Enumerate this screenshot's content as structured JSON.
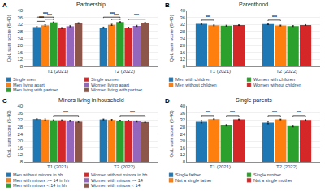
{
  "chart_data": [
    {
      "type": "bar",
      "panel_label": "A",
      "title": "Partnership",
      "ylabel": "QoL sum score (8-40)",
      "categories": [
        "T1 (2021)",
        "T2 (2022)"
      ],
      "series": [
        {
          "name": "Single men",
          "values": [
            30.5,
            30.2
          ],
          "errors": [
            0.35,
            0.35
          ]
        },
        {
          "name": "Men living apart",
          "values": [
            31.5,
            31.8
          ],
          "errors": [
            0.35,
            0.35
          ]
        },
        {
          "name": "Men living with partner",
          "values": [
            33.2,
            33.4
          ],
          "errors": [
            0.25,
            0.25
          ]
        },
        {
          "name": "Single women",
          "values": [
            30.0,
            30.2
          ],
          "errors": [
            0.28,
            0.28
          ]
        },
        {
          "name": "Women living apart",
          "values": [
            31.0,
            31.2
          ],
          "errors": [
            0.32,
            0.32
          ]
        },
        {
          "name": "Women living with partner",
          "values": [
            32.8,
            33.0
          ],
          "errors": [
            0.25,
            0.25
          ]
        }
      ],
      "ylim": [
        8,
        40
      ],
      "yticks": [
        8,
        12,
        16,
        20,
        24,
        28,
        32,
        36,
        40
      ],
      "grid": true,
      "legend": "bottom",
      "annotations": [
        {
          "text": "***",
          "category": "T1 (2021)",
          "from": "Single men",
          "to": "Men living with partner",
          "y": 36.2
        },
        {
          "text": "***",
          "category": "T1 (2021)",
          "from": "Men living apart",
          "to": "Men living with partner",
          "y": 35.0
        },
        {
          "text": "***",
          "category": "T1 (2021)",
          "from": "Single men",
          "to": "Men living apart",
          "y": 33.8
        },
        {
          "text": "***",
          "category": "T2 (2022)",
          "from": "Single men",
          "to": "Men living with partner",
          "y": 36.2
        },
        {
          "text": "***",
          "category": "T2 (2022)",
          "from": "Men living apart",
          "to": "Men living with partner",
          "y": 35.0
        },
        {
          "text": "***",
          "category": "T2 (2022)",
          "from": "Single women",
          "to": "Women living with partner",
          "y": 35.0
        }
      ]
    },
    {
      "type": "bar",
      "panel_label": "B",
      "title": "Parenthood",
      "ylabel": "QoL sum score (8-40)",
      "categories": [
        "T1 (2021)",
        "T2 (2022)"
      ],
      "series": [
        {
          "name": "Men with children",
          "values": [
            32.3,
            32.2
          ],
          "errors": [
            0.28,
            0.28
          ]
        },
        {
          "name": "Men without children",
          "values": [
            31.5,
            31.4
          ],
          "errors": [
            0.25,
            0.25
          ]
        },
        {
          "name": "Women with children",
          "values": [
            31.3,
            31.1
          ],
          "errors": [
            0.28,
            0.28
          ]
        },
        {
          "name": "Women without children",
          "values": [
            31.6,
            31.7
          ],
          "errors": [
            0.22,
            0.22
          ]
        }
      ],
      "ylim": [
        8,
        40
      ],
      "yticks": [
        8,
        12,
        16,
        20,
        24,
        28,
        32,
        36,
        40
      ],
      "grid": true,
      "legend": "bottom",
      "annotations": [
        {
          "text": "***",
          "category": "T1 (2021)",
          "from": "Men with children",
          "to": "Men without children",
          "y": 34.5
        },
        {
          "text": "***",
          "category": "T2 (2022)",
          "from": "Men with children",
          "to": "Men without children",
          "y": 34.5
        }
      ]
    },
    {
      "type": "bar",
      "panel_label": "C",
      "title": "Minors living in household",
      "ylabel": "QoL sum score (8-40)",
      "categories": [
        "T1 (2021)",
        "T2 (2022)"
      ],
      "series": [
        {
          "name": "Men without minors in hh",
          "values": [
            32.5,
            32.3
          ],
          "errors": [
            0.25,
            0.25
          ]
        },
        {
          "name": "Men with minors >= 14 in hh",
          "values": [
            32.2,
            32.0
          ],
          "errors": [
            0.35,
            0.35
          ]
        },
        {
          "name": "Men with minors < 14 in hh",
          "values": [
            31.8,
            31.6
          ],
          "errors": [
            0.28,
            0.28
          ]
        },
        {
          "name": "Women without minors in hh",
          "values": [
            31.8,
            31.6
          ],
          "errors": [
            0.25,
            0.25
          ]
        },
        {
          "name": "Women with minors >= 14",
          "values": [
            31.5,
            31.2
          ],
          "errors": [
            0.35,
            0.35
          ]
        },
        {
          "name": "Women with minors < 14",
          "values": [
            31.0,
            30.8
          ],
          "errors": [
            0.32,
            0.32
          ]
        }
      ],
      "ylim": [
        8,
        40
      ],
      "yticks": [
        8,
        12,
        16,
        20,
        24,
        28,
        32,
        36,
        40
      ],
      "grid": true,
      "legend": "bottom",
      "annotations": [
        {
          "text": "***",
          "category": "T1 (2021)",
          "from": "Men with minors < 14 in hh",
          "to": "Women with minors < 14",
          "y": 34.5
        },
        {
          "text": "***",
          "category": "T2 (2022)",
          "from": "Men with minors < 14 in hh",
          "to": "Women with minors < 14",
          "y": 34.5
        }
      ]
    },
    {
      "type": "bar",
      "panel_label": "D",
      "title": "Single parents",
      "ylabel": "QoL sum score (8-40)",
      "categories": [
        "T1 (2021)",
        "T2 (2022)"
      ],
      "series": [
        {
          "name": "Single father",
          "values": [
            31.0,
            30.5
          ],
          "errors": [
            0.7,
            0.7
          ]
        },
        {
          "name": "Not a single father",
          "values": [
            32.5,
            32.3
          ],
          "errors": [
            0.22,
            0.22
          ]
        },
        {
          "name": "Single mother",
          "values": [
            29.0,
            28.5
          ],
          "errors": [
            0.45,
            0.45
          ]
        },
        {
          "name": "Not a single mother",
          "values": [
            32.3,
            32.0
          ],
          "errors": [
            0.22,
            0.22
          ]
        }
      ],
      "ylim": [
        8,
        40
      ],
      "yticks": [
        8,
        12,
        16,
        20,
        24,
        28,
        32,
        36,
        40
      ],
      "grid": true,
      "legend": "bottom",
      "annotations": [
        {
          "text": "***",
          "category": "T1 (2021)",
          "from": "Single father",
          "to": "Not a single father",
          "y": 34.5
        },
        {
          "text": "***",
          "category": "T1 (2021)",
          "from": "Single mother",
          "to": "Not a single mother",
          "y": 34.5
        },
        {
          "text": "***",
          "category": "T2 (2022)",
          "from": "Single father",
          "to": "Not a single father",
          "y": 34.5
        },
        {
          "text": "***",
          "category": "T2 (2022)",
          "from": "Single mother",
          "to": "Not a single mother",
          "y": 34.5
        }
      ]
    }
  ]
}
